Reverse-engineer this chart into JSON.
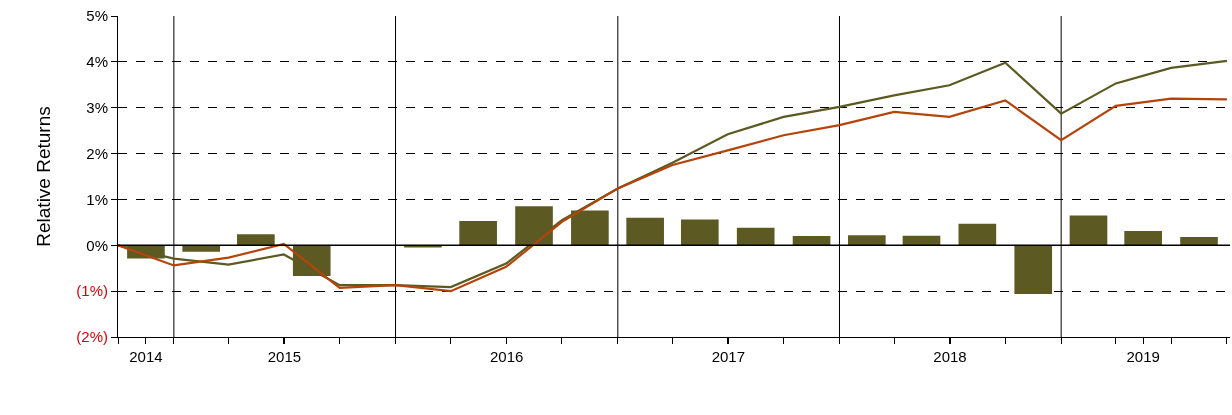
{
  "chart_data": {
    "type": "bar",
    "ylabel": "Relative Returns",
    "xlim": [
      "2014-09-30",
      "2019-10-05"
    ],
    "ylim": [
      -2,
      5
    ],
    "xticks": [
      {
        "value": "2014-09-30",
        "label": null
      },
      {
        "value": "2014-11-15",
        "label": "2014"
      },
      {
        "value": "2014-12-31",
        "label": null
      },
      {
        "value": "2015-03-31",
        "label": null
      },
      {
        "value": "2015-06-30",
        "label": null
      },
      {
        "value": "2015-07-01",
        "label": "2015"
      },
      {
        "value": "2015-09-30",
        "label": null
      },
      {
        "value": "2015-12-31",
        "label": null
      },
      {
        "value": "2016-03-31",
        "label": null
      },
      {
        "value": "2016-06-30",
        "label": null
      },
      {
        "value": "2016-07-01",
        "label": "2016"
      },
      {
        "value": "2016-09-30",
        "label": null
      },
      {
        "value": "2016-12-31",
        "label": null
      },
      {
        "value": "2017-03-31",
        "label": null
      },
      {
        "value": "2017-06-30",
        "label": null
      },
      {
        "value": "2017-07-01",
        "label": "2017"
      },
      {
        "value": "2017-09-30",
        "label": null
      },
      {
        "value": "2017-12-31",
        "label": null
      },
      {
        "value": "2018-03-31",
        "label": null
      },
      {
        "value": "2018-06-30",
        "label": null
      },
      {
        "value": "2018-07-01",
        "label": "2018"
      },
      {
        "value": "2018-09-30",
        "label": null
      },
      {
        "value": "2018-12-31",
        "label": null
      },
      {
        "value": "2019-03-31",
        "label": null
      },
      {
        "value": "2019-05-15",
        "label": "2019"
      },
      {
        "value": "2019-06-30",
        "label": null
      },
      {
        "value": "2019-09-30",
        "label": null
      }
    ],
    "yticks": [
      {
        "value": -2,
        "label": "(2%)"
      },
      {
        "value": -1,
        "label": "(1%)"
      },
      {
        "value": 0,
        "label": "0%"
      },
      {
        "value": 1,
        "label": "1%"
      },
      {
        "value": 2,
        "label": "2%"
      },
      {
        "value": 3,
        "label": "3%"
      },
      {
        "value": 4,
        "label": "4%"
      },
      {
        "value": 5,
        "label": "5%"
      }
    ],
    "grid": "y",
    "ref_lines": [
      {
        "axis": "x",
        "value": "2014-12-31",
        "color": "#000000"
      },
      {
        "axis": "x",
        "value": "2015-12-31",
        "color": "#000000"
      },
      {
        "axis": "x",
        "value": "2016-12-31",
        "color": "#000000"
      },
      {
        "axis": "x",
        "value": "2017-12-31",
        "color": "#000000"
      },
      {
        "axis": "x",
        "value": "2018-12-31",
        "color": "#000000"
      },
      {
        "axis": "y",
        "value": 0,
        "color": "#000000"
      }
    ],
    "series": [
      {
        "color": "#5c5a22",
        "x": [
          "2014-11-15",
          "2015-02-14",
          "2015-05-15",
          "2015-08-15",
          "2015-11-15",
          "2016-02-14",
          "2016-05-15",
          "2016-08-15",
          "2016-11-15",
          "2017-02-14",
          "2017-05-15",
          "2017-08-15",
          "2017-11-15",
          "2018-02-14",
          "2018-05-15",
          "2018-08-15",
          "2018-11-15",
          "2019-02-14",
          "2019-05-15",
          "2019-08-15"
        ],
        "values": [
          -0.29,
          -0.14,
          0.24,
          -0.67,
          -0.01,
          -0.05,
          0.53,
          0.85,
          0.76,
          0.6,
          0.56,
          0.38,
          0.2,
          0.22,
          0.21,
          0.47,
          -1.06,
          0.65,
          0.31,
          0.18
        ]
      },
      {
        "type": "line",
        "color": "#5c5a22",
        "x": [
          "2014-09-30",
          "2014-12-31",
          "2015-03-31",
          "2015-06-30",
          "2015-09-30",
          "2015-12-31",
          "2016-03-31",
          "2016-06-30",
          "2016-09-30",
          "2016-12-31",
          "2017-03-31",
          "2017-06-30",
          "2017-09-30",
          "2017-12-31",
          "2018-03-31",
          "2018-06-30",
          "2018-09-30",
          "2018-12-31",
          "2019-03-31",
          "2019-06-30",
          "2019-09-30"
        ],
        "values": [
          0,
          -0.29,
          -0.42,
          -0.2,
          -0.87,
          -0.87,
          -0.91,
          -0.4,
          0.55,
          1.24,
          1.8,
          2.42,
          2.8,
          3.02,
          3.27,
          3.49,
          3.98,
          2.87,
          3.53,
          3.87,
          4.02
        ]
      },
      {
        "type": "line",
        "color": "#b5440a",
        "x": [
          "2014-09-30",
          "2014-12-31",
          "2015-03-31",
          "2015-06-30",
          "2015-09-30",
          "2015-12-31",
          "2016-03-31",
          "2016-06-30",
          "2016-09-30",
          "2016-12-31",
          "2017-03-31",
          "2017-06-30",
          "2017-09-30",
          "2017-12-31",
          "2018-03-31",
          "2018-06-30",
          "2018-09-30",
          "2018-12-31",
          "2019-03-31",
          "2019-06-30",
          "2019-09-30"
        ],
        "values": [
          0,
          -0.44,
          -0.27,
          0.03,
          -0.93,
          -0.87,
          -1.0,
          -0.47,
          0.51,
          1.24,
          1.75,
          2.07,
          2.4,
          2.62,
          2.91,
          2.8,
          3.16,
          2.29,
          3.04,
          3.2,
          3.18
        ]
      }
    ]
  }
}
